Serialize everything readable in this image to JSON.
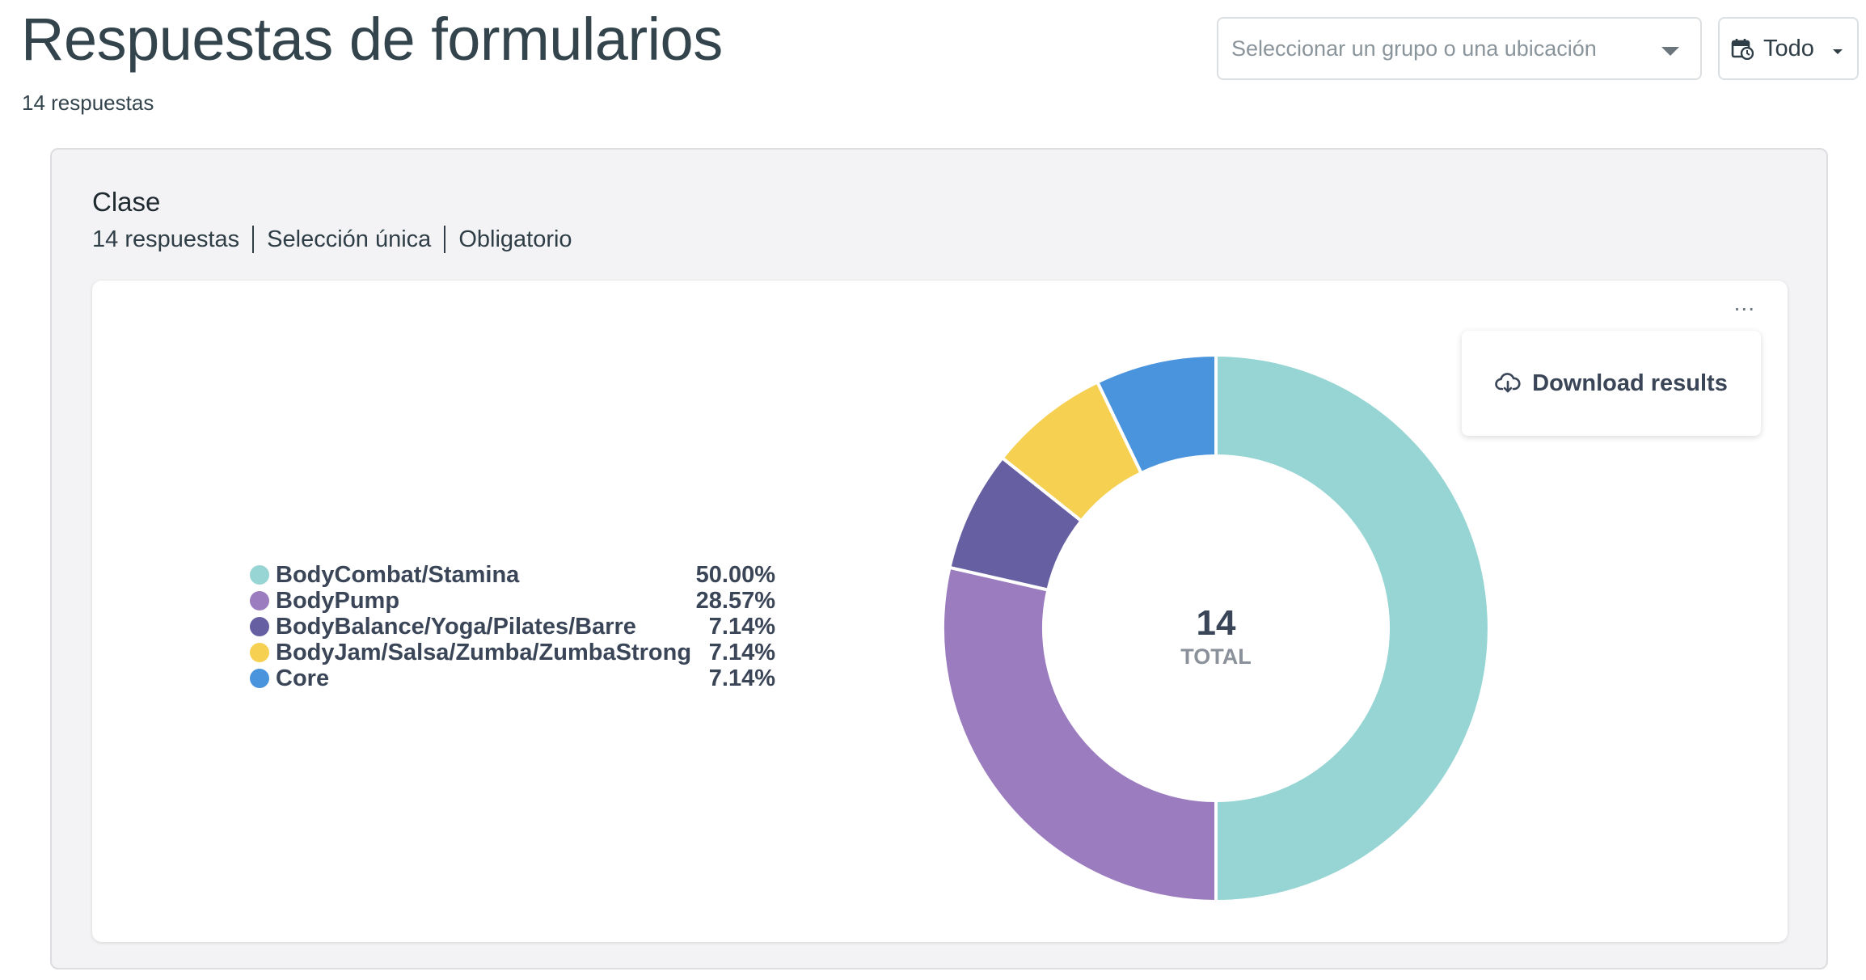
{
  "header": {
    "title": "Respuestas de formularios",
    "subtitle": "14 respuestas",
    "group_select_placeholder": "Seleccionar un grupo o una ubicación",
    "date_filter_label": "Todo"
  },
  "question": {
    "title": "Clase",
    "responses": "14 respuestas",
    "type": "Selección única",
    "required": "Obligatorio"
  },
  "menu": {
    "more_label": "...",
    "download_label": "Download results"
  },
  "chart_data": {
    "type": "pie",
    "donut": true,
    "center_value": "14",
    "center_label": "TOTAL",
    "legend_position": "left",
    "categories": [
      "BodyCombat/Stamina",
      "BodyPump",
      "BodyBalance/Yoga/Pilates/Barre",
      "BodyJam/Salsa/Zumba/ZumbaStrong",
      "Core"
    ],
    "values": [
      7,
      4,
      1,
      1,
      1
    ],
    "percent_labels": [
      "50.00%",
      "28.57%",
      "7.14%",
      "7.14%",
      "7.14%"
    ],
    "colors": [
      "#96d5d3",
      "#9b7cbf",
      "#6660a3",
      "#f6d051",
      "#4a94de"
    ]
  }
}
